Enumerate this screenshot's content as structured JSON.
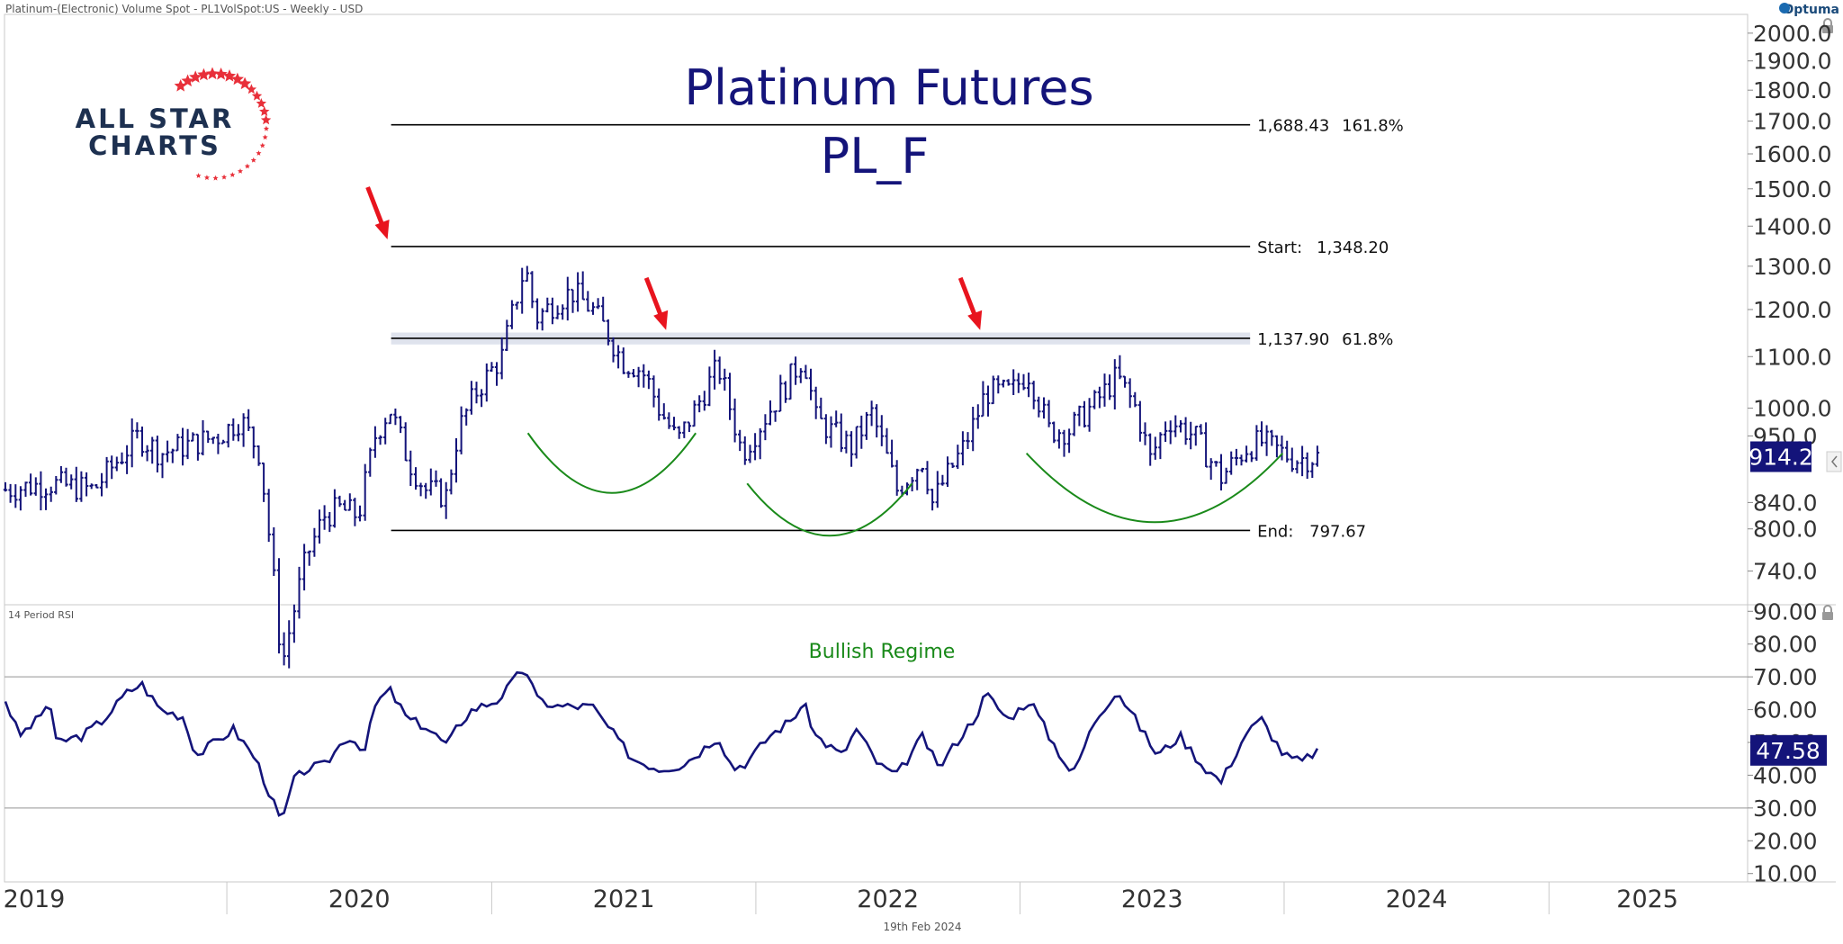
{
  "header": {
    "instrument": "Platinum-(Electronic) Volume Spot - PL1VolSpot:US - Weekly - USD",
    "vendor": "Optuma",
    "date_footer": "19th Feb 2024"
  },
  "logo": {
    "line1": "ALL STAR",
    "line2": "CHARTS",
    "star_color": "#e8303a",
    "text_color": "#1d3050"
  },
  "colors": {
    "price": "#14147a",
    "fib": "#000000",
    "arrow": "#e8141e",
    "arc": "#1a8a1a",
    "regime": "#1a8a1a",
    "band": "#b9c0d6"
  },
  "chart_data": [
    {
      "type": "ohlc",
      "title": "Platinum Futures",
      "subtitle": "PL_F",
      "frequency": "weekly",
      "y_scale": "log",
      "ylim": [
        700,
        2050
      ],
      "y_ticks": [
        "2000.0",
        "1900.0",
        "1800.0",
        "1700.0",
        "1600.0",
        "1500.0",
        "1400.0",
        "1300.0",
        "1200.0",
        "1100.0",
        "1000.0",
        "950.0",
        "840.0",
        "800.0",
        "740.0"
      ],
      "last_value": "914.2",
      "x_axis": {
        "labels": [
          "2019",
          "2020",
          "2021",
          "2022",
          "2023",
          "2024",
          "2025"
        ],
        "range": [
          "2019-03-01",
          "2025-09-30"
        ]
      },
      "fib_levels": [
        {
          "price": 1688.43,
          "label": "1,688.43",
          "pct": "161.8%"
        },
        {
          "price": 1348.2,
          "label": "1,348.20",
          "prefix": "Start:"
        },
        {
          "price": 1137.9,
          "label": "1,137.90",
          "pct": "61.8%"
        },
        {
          "price": 797.67,
          "label": "797.67",
          "prefix": "End:"
        }
      ],
      "fib_range": [
        "2020-08-15",
        "2023-11-15"
      ],
      "resistance_band": [
        1125,
        1150
      ],
      "arrows": [
        {
          "date": "2020-08-10",
          "price": 1348
        },
        {
          "date": "2021-08-30",
          "price": 1140
        },
        {
          "date": "2022-11-07",
          "price": 1140
        }
      ],
      "arcs": [
        {
          "start": "2021-02-20",
          "end": "2021-10-10",
          "top": 955,
          "bottom": 855
        },
        {
          "start": "2021-12-20",
          "end": "2022-08-05",
          "top": 870,
          "bottom": 790
        },
        {
          "start": "2023-01-10",
          "end": "2023-12-30",
          "top": 920,
          "bottom": 810
        }
      ],
      "anchors": [
        [
          "2019-03-01",
          860
        ],
        [
          "2019-05-01",
          870
        ],
        [
          "2019-07-01",
          860
        ],
        [
          "2019-09-01",
          950
        ],
        [
          "2019-10-01",
          920
        ],
        [
          "2019-12-20",
          950
        ],
        [
          "2020-01-20",
          980
        ],
        [
          "2020-02-15",
          920
        ],
        [
          "2020-03-17",
          620
        ],
        [
          "2020-04-20",
          760
        ],
        [
          "2020-05-15",
          820
        ],
        [
          "2020-06-05",
          830
        ],
        [
          "2020-07-01",
          820
        ],
        [
          "2020-07-24",
          950
        ],
        [
          "2020-08-13",
          1000
        ],
        [
          "2020-09-07",
          910
        ],
        [
          "2020-10-01",
          860
        ],
        [
          "2020-10-30",
          850
        ],
        [
          "2020-11-16",
          960
        ],
        [
          "2020-12-10",
          1030
        ],
        [
          "2021-01-15",
          1100
        ],
        [
          "2021-02-16",
          1300
        ],
        [
          "2021-03-03",
          1180
        ],
        [
          "2021-04-01",
          1220
        ],
        [
          "2021-04-22",
          1240
        ],
        [
          "2021-05-20",
          1200
        ],
        [
          "2021-06-10",
          1150
        ],
        [
          "2021-07-01",
          1090
        ],
        [
          "2021-07-20",
          1080
        ],
        [
          "2021-08-02",
          1060
        ],
        [
          "2021-08-20",
          1000
        ],
        [
          "2021-09-15",
          940
        ],
        [
          "2021-10-10",
          1000
        ],
        [
          "2021-11-10",
          1080
        ],
        [
          "2021-12-13",
          920
        ],
        [
          "2022-01-12",
          980
        ],
        [
          "2022-02-10",
          1040
        ],
        [
          "2022-03-08",
          1100
        ],
        [
          "2022-03-25",
          980
        ],
        [
          "2022-05-13",
          930
        ],
        [
          "2022-06-10",
          990
        ],
        [
          "2022-07-15",
          860
        ],
        [
          "2022-08-20",
          910
        ],
        [
          "2022-09-02",
          840
        ],
        [
          "2022-09-16",
          870
        ],
        [
          "2022-10-15",
          930
        ],
        [
          "2022-11-01",
          980
        ],
        [
          "2022-11-15",
          1030
        ],
        [
          "2022-12-20",
          1030
        ],
        [
          "2023-01-12",
          1070
        ],
        [
          "2023-02-10",
          960
        ],
        [
          "2023-03-10",
          960
        ],
        [
          "2023-04-15",
          1010
        ],
        [
          "2023-05-15",
          1060
        ],
        [
          "2023-06-10",
          1000
        ],
        [
          "2023-06-30",
          910
        ],
        [
          "2023-07-25",
          980
        ],
        [
          "2023-08-30",
          950
        ],
        [
          "2023-10-06",
          880
        ],
        [
          "2023-11-10",
          930
        ],
        [
          "2023-11-30",
          940
        ],
        [
          "2024-01-15",
          910
        ],
        [
          "2024-02-16",
          914
        ]
      ]
    },
    {
      "type": "line",
      "title": "14 Period RSI",
      "annotation": "Bullish Regime",
      "ylim": [
        8,
        92
      ],
      "y_ticks": [
        "90.00",
        "80.00",
        "70.00",
        "60.00",
        "50.00",
        "40.00",
        "30.00",
        "20.00",
        "10.00"
      ],
      "hlines": [
        70,
        30
      ],
      "last_value": "47.58",
      "anchors": [
        [
          "2019-03-01",
          63
        ],
        [
          "2019-03-20",
          52
        ],
        [
          "2019-04-15",
          57
        ],
        [
          "2019-05-01",
          63
        ],
        [
          "2019-05-10",
          50
        ],
        [
          "2019-06-15",
          52
        ],
        [
          "2019-07-15",
          57
        ],
        [
          "2019-08-15",
          65
        ],
        [
          "2019-09-05",
          68
        ],
        [
          "2019-10-01",
          60
        ],
        [
          "2019-11-01",
          58
        ],
        [
          "2019-11-20",
          46
        ],
        [
          "2019-12-15",
          50
        ],
        [
          "2020-01-10",
          54
        ],
        [
          "2020-02-10",
          45
        ],
        [
          "2020-03-17",
          25
        ],
        [
          "2020-04-01",
          38
        ],
        [
          "2020-04-20",
          42
        ],
        [
          "2020-05-15",
          43
        ],
        [
          "2020-06-15",
          52
        ],
        [
          "2020-07-10",
          48
        ],
        [
          "2020-07-25",
          62
        ],
        [
          "2020-08-13",
          66
        ],
        [
          "2020-09-07",
          57
        ],
        [
          "2020-10-01",
          55
        ],
        [
          "2020-11-01",
          49
        ],
        [
          "2020-11-15",
          55
        ],
        [
          "2020-12-05",
          60
        ],
        [
          "2021-01-10",
          63
        ],
        [
          "2021-02-16",
          73
        ],
        [
          "2021-03-05",
          63
        ],
        [
          "2021-04-01",
          61
        ],
        [
          "2021-05-20",
          61
        ],
        [
          "2021-06-20",
          52
        ],
        [
          "2021-07-15",
          45
        ],
        [
          "2021-08-20",
          42
        ],
        [
          "2021-09-20",
          43
        ],
        [
          "2021-10-15",
          47
        ],
        [
          "2021-11-10",
          52
        ],
        [
          "2021-11-30",
          42
        ],
        [
          "2021-12-20",
          44
        ],
        [
          "2022-01-20",
          52
        ],
        [
          "2022-02-20",
          57
        ],
        [
          "2022-03-08",
          62
        ],
        [
          "2022-03-25",
          52
        ],
        [
          "2022-04-30",
          46
        ],
        [
          "2022-05-20",
          54
        ],
        [
          "2022-06-20",
          43
        ],
        [
          "2022-07-15",
          40
        ],
        [
          "2022-08-20",
          52
        ],
        [
          "2022-09-10",
          42
        ],
        [
          "2022-10-05",
          50
        ],
        [
          "2022-11-01",
          58
        ],
        [
          "2022-11-15",
          65
        ],
        [
          "2022-12-15",
          57
        ],
        [
          "2023-01-15",
          63
        ],
        [
          "2023-02-10",
          52
        ],
        [
          "2023-03-15",
          40
        ],
        [
          "2023-04-15",
          57
        ],
        [
          "2023-05-15",
          66
        ],
        [
          "2023-06-15",
          55
        ],
        [
          "2023-07-10",
          46
        ],
        [
          "2023-08-10",
          52
        ],
        [
          "2023-09-10",
          43
        ],
        [
          "2023-10-06",
          38
        ],
        [
          "2023-11-10",
          53
        ],
        [
          "2023-12-01",
          57
        ],
        [
          "2024-01-01",
          46
        ],
        [
          "2024-01-25",
          44
        ],
        [
          "2024-02-16",
          47.58
        ]
      ]
    }
  ]
}
